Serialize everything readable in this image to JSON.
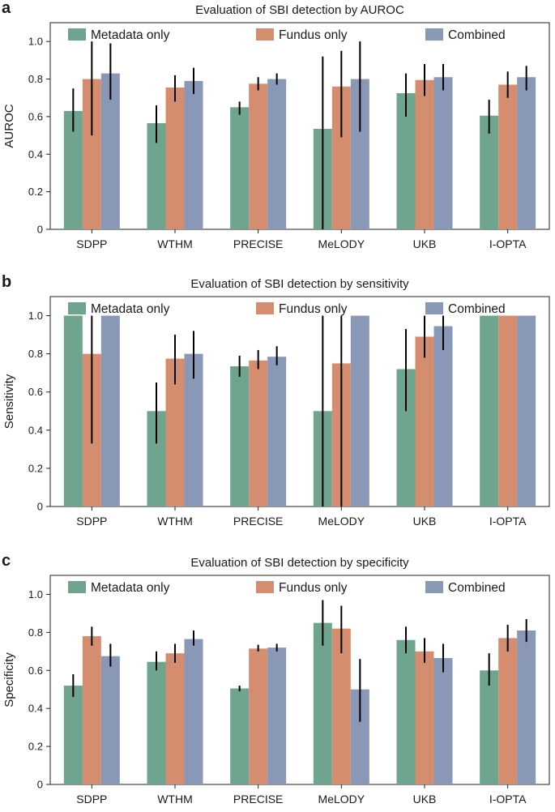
{
  "colors": {
    "metadata": "#6fa58f",
    "fundus": "#d48d6f",
    "combined": "#8a98b8",
    "errorbar": "#000000",
    "axis": "#222222"
  },
  "legend": [
    "Metadata only",
    "Fundus only",
    "Combined"
  ],
  "chart_data": [
    {
      "panel": "a",
      "type": "bar",
      "title": "Evaluation of SBI detection by AUROC",
      "ylabel": "AUROC",
      "xlabel": "",
      "ylim": [
        0,
        1.1
      ],
      "yticks": [
        "0",
        "0.2",
        "0.4",
        "0.6",
        "0.8",
        "1.0"
      ],
      "categories": [
        "SDPP",
        "WTHM",
        "PRECISE",
        "MeLODY",
        "UKB",
        "I-OPTA"
      ],
      "series": [
        {
          "name": "Metadata only",
          "values": [
            0.63,
            0.565,
            0.65,
            0.535,
            0.725,
            0.605
          ],
          "err_low": [
            0.52,
            0.46,
            0.61,
            0.0,
            0.6,
            0.51
          ],
          "err_high": [
            0.75,
            0.66,
            0.68,
            0.92,
            0.83,
            0.69
          ]
        },
        {
          "name": "Fundus only",
          "values": [
            0.8,
            0.755,
            0.775,
            0.76,
            0.795,
            0.77
          ],
          "err_low": [
            0.5,
            0.68,
            0.74,
            0.49,
            0.71,
            0.7
          ],
          "err_high": [
            1.0,
            0.82,
            0.81,
            0.95,
            0.88,
            0.84
          ]
        },
        {
          "name": "Combined",
          "values": [
            0.83,
            0.79,
            0.8,
            0.8,
            0.81,
            0.81
          ],
          "err_low": [
            0.69,
            0.72,
            0.77,
            0.52,
            0.74,
            0.74
          ],
          "err_high": [
            0.99,
            0.86,
            0.83,
            1.0,
            0.88,
            0.87
          ]
        }
      ]
    },
    {
      "panel": "b",
      "type": "bar",
      "title": "Evaluation of SBI detection by sensitivity",
      "ylabel": "Sensitivity",
      "xlabel": "",
      "ylim": [
        0,
        1.1
      ],
      "yticks": [
        "0",
        "0.2",
        "0.4",
        "0.6",
        "0.8",
        "1.0"
      ],
      "categories": [
        "SDPP",
        "WTHM",
        "PRECISE",
        "MeLODY",
        "UKB",
        "I-OPTA"
      ],
      "series": [
        {
          "name": "Metadata only",
          "values": [
            1.0,
            0.5,
            0.735,
            0.5,
            0.72,
            1.0
          ],
          "err_low": [
            1.0,
            0.33,
            0.68,
            0.0,
            0.5,
            1.0
          ],
          "err_high": [
            1.0,
            0.65,
            0.79,
            1.0,
            0.93,
            1.0
          ]
        },
        {
          "name": "Fundus only",
          "values": [
            0.8,
            0.775,
            0.765,
            0.75,
            0.89,
            1.0
          ],
          "err_low": [
            0.33,
            0.64,
            0.72,
            0.0,
            0.78,
            1.0
          ],
          "err_high": [
            1.0,
            0.9,
            0.82,
            1.0,
            1.0,
            1.0
          ]
        },
        {
          "name": "Combined",
          "values": [
            1.0,
            0.8,
            0.785,
            1.0,
            0.945,
            1.0
          ],
          "err_low": [
            1.0,
            0.67,
            0.74,
            1.0,
            0.82,
            1.0
          ],
          "err_high": [
            1.0,
            0.92,
            0.84,
            1.0,
            1.0,
            1.0
          ]
        }
      ]
    },
    {
      "panel": "c",
      "type": "bar",
      "title": "Evaluation of SBI detection by specificity",
      "ylabel": "Specificity",
      "xlabel": "",
      "ylim": [
        0,
        1.1
      ],
      "yticks": [
        "0",
        "0.2",
        "0.4",
        "0.6",
        "0.8",
        "1.0"
      ],
      "categories": [
        "SDPP",
        "WTHM",
        "PRECISE",
        "MeLODY",
        "UKB",
        "I-OPTA"
      ],
      "series": [
        {
          "name": "Metadata only",
          "values": [
            0.52,
            0.645,
            0.505,
            0.85,
            0.76,
            0.6
          ],
          "err_low": [
            0.46,
            0.6,
            0.49,
            0.73,
            0.69,
            0.52
          ],
          "err_high": [
            0.58,
            0.7,
            0.52,
            0.97,
            0.83,
            0.69
          ]
        },
        {
          "name": "Fundus only",
          "values": [
            0.78,
            0.69,
            0.715,
            0.82,
            0.7,
            0.77
          ],
          "err_low": [
            0.73,
            0.64,
            0.7,
            0.69,
            0.64,
            0.7
          ],
          "err_high": [
            0.83,
            0.74,
            0.735,
            0.94,
            0.77,
            0.84
          ]
        },
        {
          "name": "Combined",
          "values": [
            0.675,
            0.765,
            0.72,
            0.5,
            0.665,
            0.81
          ],
          "err_low": [
            0.62,
            0.73,
            0.7,
            0.33,
            0.59,
            0.75
          ],
          "err_high": [
            0.74,
            0.81,
            0.74,
            0.66,
            0.74,
            0.87
          ]
        }
      ]
    }
  ]
}
